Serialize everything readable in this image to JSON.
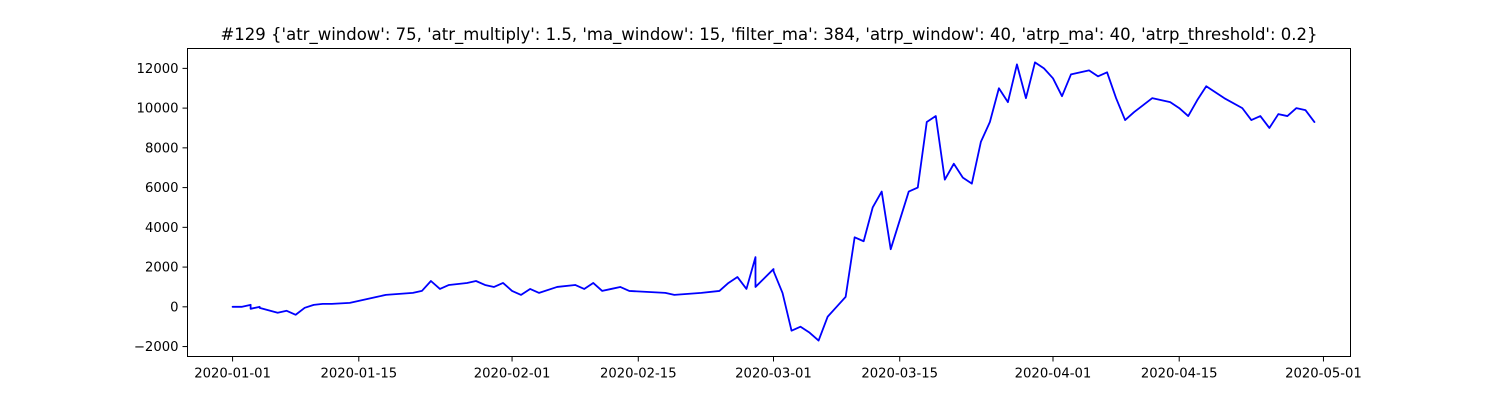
{
  "chart_data": {
    "type": "line",
    "title": "#129 {'atr_window': 75, 'atr_multiply': 1.5, 'ma_window': 15, 'filter_ma': 384, 'atrp_window': 40, 'atrp_ma': 40, 'atrp_threshold': 0.2}",
    "xlabel": "",
    "ylabel": "",
    "x_type": "date",
    "xlim": [
      "2019-12-27",
      "2020-05-04"
    ],
    "ylim": [
      -2500,
      13000
    ],
    "x_ticks": [
      "2020-01-01",
      "2020-01-15",
      "2020-02-01",
      "2020-02-15",
      "2020-03-01",
      "2020-03-15",
      "2020-04-01",
      "2020-04-15",
      "2020-05-01"
    ],
    "y_ticks": [
      -2000,
      0,
      2000,
      4000,
      6000,
      8000,
      10000,
      12000
    ],
    "grid": false,
    "legend": "none",
    "series": [
      {
        "color": "#0000ff",
        "x": [
          "2020-01-01",
          "2020-01-02",
          "2020-01-03",
          "2020-01-03",
          "2020-01-04",
          "2020-01-04",
          "2020-01-06",
          "2020-01-07",
          "2020-01-08",
          "2020-01-09",
          "2020-01-10",
          "2020-01-11",
          "2020-01-12",
          "2020-01-14",
          "2020-01-15",
          "2020-01-17",
          "2020-01-18",
          "2020-01-21",
          "2020-01-22",
          "2020-01-23",
          "2020-01-24",
          "2020-01-25",
          "2020-01-27",
          "2020-01-28",
          "2020-01-29",
          "2020-01-30",
          "2020-01-31",
          "2020-02-01",
          "2020-02-02",
          "2020-02-03",
          "2020-02-04",
          "2020-02-06",
          "2020-02-08",
          "2020-02-09",
          "2020-02-10",
          "2020-02-11",
          "2020-02-12",
          "2020-02-13",
          "2020-02-14",
          "2020-02-18",
          "2020-02-19",
          "2020-02-22",
          "2020-02-24",
          "2020-02-25",
          "2020-02-26",
          "2020-02-27",
          "2020-02-28",
          "2020-02-28",
          "2020-03-01",
          "2020-03-01",
          "2020-03-02",
          "2020-03-03",
          "2020-03-04",
          "2020-03-05",
          "2020-03-06",
          "2020-03-07",
          "2020-03-08",
          "2020-03-09",
          "2020-03-10",
          "2020-03-11",
          "2020-03-12",
          "2020-03-13",
          "2020-03-14",
          "2020-03-16",
          "2020-03-17",
          "2020-03-18",
          "2020-03-19",
          "2020-03-20",
          "2020-03-21",
          "2020-03-22",
          "2020-03-23",
          "2020-03-24",
          "2020-03-25",
          "2020-03-26",
          "2020-03-27",
          "2020-03-28",
          "2020-03-29",
          "2020-03-30",
          "2020-03-31",
          "2020-04-01",
          "2020-04-02",
          "2020-04-03",
          "2020-04-04",
          "2020-04-05",
          "2020-04-06",
          "2020-04-07",
          "2020-04-08",
          "2020-04-09",
          "2020-04-10",
          "2020-04-12",
          "2020-04-13",
          "2020-04-14",
          "2020-04-15",
          "2020-04-16",
          "2020-04-17",
          "2020-04-18",
          "2020-04-20",
          "2020-04-22",
          "2020-04-23",
          "2020-04-24",
          "2020-04-25",
          "2020-04-26",
          "2020-04-27",
          "2020-04-28",
          "2020-04-29",
          "2020-04-30"
        ],
        "y": [
          0,
          0,
          100,
          -100,
          0,
          -50,
          -300,
          -200,
          -400,
          -50,
          100,
          150,
          150,
          200,
          300,
          500,
          600,
          700,
          800,
          1300,
          900,
          1100,
          1200,
          1300,
          1100,
          1000,
          1200,
          800,
          600,
          900,
          700,
          1000,
          1100,
          900,
          1200,
          800,
          900,
          1000,
          800,
          700,
          600,
          700,
          800,
          1200,
          1500,
          900,
          2500,
          1000,
          1900,
          1800,
          700,
          -1200,
          -1000,
          -1300,
          -1700,
          -500,
          0,
          500,
          3500,
          3300,
          5000,
          5800,
          2900,
          5800,
          6000,
          9300,
          9600,
          6400,
          7200,
          6500,
          6200,
          8300,
          9300,
          11000,
          10300,
          12200,
          10500,
          12300,
          12000,
          11500,
          10600,
          11700,
          11800,
          11900,
          11600,
          11800,
          10500,
          9400,
          9800,
          10500,
          10400,
          10300,
          10000,
          9600,
          10400,
          11100,
          10500,
          10000,
          9400,
          9600,
          9000,
          9700,
          9600,
          10000,
          9900,
          9300
        ]
      }
    ]
  }
}
